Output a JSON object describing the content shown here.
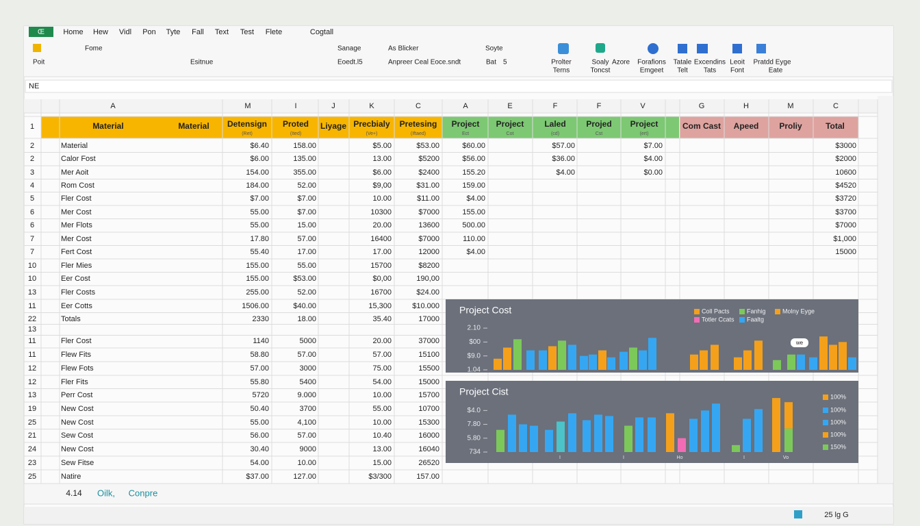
{
  "app_button": "Œ",
  "ribbon_tabs": [
    "Home",
    "Hew",
    "Vidl",
    "Pon",
    "Tyte",
    "Fall",
    "Text",
    "Test",
    "Flete",
    "Cogtall"
  ],
  "ribbon_items": [
    "Fome",
    "Sanage",
    "As Blicker",
    "Soyte",
    "Poit",
    "Esitnue",
    "Eoedt.l5",
    "Anpreer Ceal Eoce.sndt",
    "Bat",
    "5",
    "Prolter",
    "Terns",
    "Soaly",
    "Toncst",
    "Azore",
    "Forafions",
    "Emgeet",
    "Tatale",
    "Telt",
    "Excendins",
    "Tats",
    "Leoit",
    "Font",
    "Pratdd Eyge",
    "Eate"
  ],
  "name_box": "NE",
  "column_headers": [
    "A",
    "M",
    "I",
    "J",
    "K",
    "C",
    "A",
    "E",
    "F",
    "F",
    "V",
    "G",
    "H",
    "M",
    "C"
  ],
  "header_row": {
    "row": 1,
    "cells": [
      {
        "text": "Material"
      },
      {
        "text": "Material"
      },
      {
        "text": "Detensign",
        "sub": "(Ret)"
      },
      {
        "text": "Proted",
        "sub": "(Ited)"
      },
      {
        "text": "Liyage"
      },
      {
        "text": "Precbialy",
        "sub": "(Ve+)"
      },
      {
        "text": "Pretesing",
        "sub": "(Iftaed)"
      },
      {
        "text": "Project",
        "sub": "Ect"
      },
      {
        "text": "Project",
        "sub": "Cot"
      },
      {
        "text": "Laled",
        "sub": "(cd)"
      },
      {
        "text": "Projed",
        "sub": "Cst"
      },
      {
        "text": "Project",
        "sub": "(ert)"
      },
      {
        "text": "Com Cast"
      },
      {
        "text": "Apeed"
      },
      {
        "text": "Proliy"
      },
      {
        "text": "Total"
      }
    ]
  },
  "rows": [
    {
      "row": 2,
      "label": "Material",
      "m": "$6.40",
      "i": "158.00",
      "k": "$5.00",
      "c": "$53.00",
      "a": "$60.00",
      "f": "$57.00",
      "v": "$7.00",
      "total": "$3000"
    },
    {
      "row": 2,
      "label": "Calor Fost",
      "m": "$6.00",
      "i": "135.00",
      "k": "13.00",
      "c": "$5200",
      "a": "$56.00",
      "f": "$36.00",
      "v": "$4.00",
      "total": "$2000"
    },
    {
      "row": 3,
      "label": "Mer Aoit",
      "m": "154.00",
      "i": "355.00",
      "k": "$6.00",
      "c": "$2400",
      "a": "155.20",
      "f": "$4.00",
      "v": "$0.00",
      "total": "10600"
    },
    {
      "row": 4,
      "label": "Rom Cost",
      "m": "184.00",
      "i": "52.00",
      "k": "$9,00",
      "c": "$31.00",
      "a": "159.00",
      "total": "$4520"
    },
    {
      "row": 5,
      "label": "Fler Cost",
      "m": "$7.00",
      "i": "$7.00",
      "k": "10.00",
      "c": "$11.00",
      "a": "$4.00",
      "total": "$3720"
    },
    {
      "row": 6,
      "label": "Mer Cost",
      "m": "55.00",
      "i": "$7.00",
      "k": "10300",
      "c": "$7000",
      "a": "155.00",
      "total": "$3700"
    },
    {
      "row": 6,
      "label": "Mer Flots",
      "m": "55.00",
      "i": "15.00",
      "k": "20.00",
      "c": "13600",
      "a": "500.00",
      "total": "$7000"
    },
    {
      "row": 7,
      "label": "Mer Cost",
      "m": "17.80",
      "i": "57.00",
      "k": "16400",
      "c": "$7000",
      "a": "110.00",
      "total": "$1,000"
    },
    {
      "row": 7,
      "label": "Fert Cost",
      "m": "55.40",
      "i": "17.00",
      "k": "17.00",
      "c": "12000",
      "a": "$4.00",
      "total": "15000"
    },
    {
      "row": 10,
      "label": "Fler Mies",
      "m": "155.00",
      "i": "55.00",
      "k": "15700",
      "c": "$8200"
    },
    {
      "row": 10,
      "label": "Eer Cost",
      "m": "155.00",
      "i": "$53.00",
      "k": "$0,00",
      "c": "190,00"
    },
    {
      "row": 13,
      "label": "Fler Costs",
      "m": "255.00",
      "i": "52.00",
      "k": "16700",
      "c": "$24.00"
    },
    {
      "row": 11,
      "label": "Eer Cotts",
      "m": "1506.00",
      "i": "$40.00",
      "k": "15,300",
      "c": "$10.000"
    },
    {
      "row": 22,
      "label": "Totals",
      "m": "2330",
      "i": "18.00",
      "k": "35.40",
      "c": "17000"
    },
    {
      "row": 13
    },
    {
      "row": 11,
      "label": "Fler Cost",
      "m": "1140",
      "i": "5000",
      "k": "20.00",
      "c": "37000"
    },
    {
      "row": 11,
      "label": "Flew Fits",
      "m": "58.80",
      "i": "57.00",
      "k": "57.00",
      "c": "15100"
    },
    {
      "row": 12,
      "label": "Flew Fots",
      "m": "57.00",
      "i": "3000",
      "k": "75.00",
      "c": "15500"
    },
    {
      "row": 12,
      "label": "Fler Fits",
      "m": "55.80",
      "i": "5400",
      "k": "54.00",
      "c": "15000"
    },
    {
      "row": 13,
      "label": "Perr Cost",
      "m": "5720",
      "i": "9.000",
      "k": "10.00",
      "c": "15700"
    },
    {
      "row": 19,
      "label": "New Cost",
      "m": "50.40",
      "i": "3700",
      "k": "55.00",
      "c": "10700"
    },
    {
      "row": 25,
      "label": "New Cost",
      "m": "55.00",
      "i": "4,100",
      "k": "10.00",
      "c": "15300"
    },
    {
      "row": 21,
      "label": "Sew Cost",
      "m": "56.00",
      "i": "57.00",
      "k": "10.40",
      "c": "16000"
    },
    {
      "row": 24,
      "label": "New Cost",
      "m": "30.40",
      "i": "9000",
      "k": "13.00",
      "c": "16040"
    },
    {
      "row": 23,
      "label": "Sew Fitse",
      "m": "54.00",
      "i": "10.00",
      "k": "15.00",
      "c": "26520"
    },
    {
      "row": 25,
      "label": "Natire",
      "m": "$37.00",
      "i": "127.00",
      "k": "$3/300",
      "c": "157.00"
    }
  ],
  "charts": [
    {
      "type": "bar",
      "title": "Project Cost",
      "ylim": [
        0,
        3.2
      ],
      "yticks": [
        {
          "value": 3,
          "label": "2.10"
        },
        {
          "value": 2,
          "label": "$00"
        },
        {
          "value": 1,
          "label": "$9.0"
        },
        {
          "value": 0,
          "label": "1.04"
        }
      ],
      "legend": [
        {
          "name": "Coll Pacts",
          "color": "#f5a01a"
        },
        {
          "name": "Fanhig",
          "color": "#7cc95a"
        },
        {
          "name": "Molny Eyge",
          "color": "#f5a01a"
        },
        {
          "name": "Totler Ccats",
          "color": "#f26cb5"
        },
        {
          "name": "Faaltg",
          "color": "#35a7f2"
        }
      ],
      "annotation": "we",
      "bars": [
        {
          "value": 0.8,
          "color": "#f5a01a"
        },
        {
          "value": 1.6,
          "color": "#f5a01a"
        },
        {
          "value": 2.2,
          "color": "#7cc95a"
        },
        {
          "value": 1.4,
          "color": "#35a7f2"
        },
        {
          "value": 1.4,
          "color": "#35a7f2"
        },
        {
          "value": 1.7,
          "color": "#f5a01a"
        },
        {
          "value": 2.1,
          "color": "#7cc95a"
        },
        {
          "value": 1.8,
          "color": "#35a7f2"
        },
        {
          "value": 1.0,
          "color": "#35a7f2"
        },
        {
          "value": 1.1,
          "color": "#35a7f2"
        },
        {
          "value": 1.4,
          "color": "#f5a01a"
        },
        {
          "value": 0.9,
          "color": "#35a7f2"
        },
        {
          "value": 1.3,
          "color": "#35a7f2"
        },
        {
          "value": 1.6,
          "color": "#7cc95a"
        },
        {
          "value": 1.4,
          "color": "#35a7f2"
        },
        {
          "value": 2.3,
          "color": "#35a7f2"
        },
        {
          "value": 1.1,
          "color": "#f5a01a"
        },
        {
          "value": 1.4,
          "color": "#f5a01a"
        },
        {
          "value": 1.8,
          "color": "#f5a01a"
        },
        {
          "value": 0.9,
          "color": "#f5a01a"
        },
        {
          "value": 1.4,
          "color": "#f5a01a"
        },
        {
          "value": 2.1,
          "color": "#f5a01a"
        },
        {
          "value": 0.7,
          "color": "#7cc95a"
        },
        {
          "value": 1.1,
          "color": "#7cc95a"
        },
        {
          "value": 1.1,
          "color": "#35a7f2"
        },
        {
          "value": 0.9,
          "color": "#35a7f2"
        },
        {
          "value": 2.4,
          "color": "#f5a01a"
        },
        {
          "value": 1.8,
          "color": "#f5a01a"
        },
        {
          "value": 2.0,
          "color": "#f5a01a"
        },
        {
          "value": 0.9,
          "color": "#35a7f2"
        }
      ]
    },
    {
      "type": "bar",
      "title": "Project Cist",
      "ylim": [
        0,
        4.5
      ],
      "yticks": [
        {
          "value": 3,
          "label": "$4.0"
        },
        {
          "value": 2,
          "label": "7.80"
        },
        {
          "value": 1,
          "label": "5.80"
        },
        {
          "value": 0,
          "label": "734"
        }
      ],
      "legend": [
        {
          "name": "100%",
          "color": "#f5a01a"
        },
        {
          "name": "100%",
          "color": "#35a7f2"
        },
        {
          "name": "100%",
          "color": "#35a7f2"
        },
        {
          "name": "100%",
          "color": "#f5a01a"
        },
        {
          "name": "150%",
          "color": "#7cc95a"
        }
      ],
      "x_labels": [
        "I",
        "I",
        "Ho",
        "I",
        "Vo"
      ],
      "bars": [
        {
          "value": 1.6,
          "color": "#7cc95a"
        },
        {
          "value": 2.7,
          "color": "#35a7f2"
        },
        {
          "value": 2.0,
          "color": "#35a7f2"
        },
        {
          "value": 1.9,
          "color": "#35a7f2"
        },
        {
          "value": 1.6,
          "color": "#35a7f2"
        },
        {
          "value": 2.2,
          "color": "#4cc3c9"
        },
        {
          "value": 2.8,
          "color": "#35a7f2"
        },
        {
          "value": 2.3,
          "color": "#35a7f2"
        },
        {
          "value": 2.7,
          "color": "#35a7f2"
        },
        {
          "value": 2.6,
          "color": "#35a7f2"
        },
        {
          "value": 1.9,
          "color": "#7cc95a"
        },
        {
          "value": 2.5,
          "color": "#35a7f2"
        },
        {
          "value": 2.5,
          "color": "#35a7f2"
        },
        {
          "value": 2.8,
          "color": "#f5a01a"
        },
        {
          "value": 1.0,
          "color": "#f26cb5"
        },
        {
          "value": 2.4,
          "color": "#35a7f2"
        },
        {
          "value": 3.0,
          "color": "#35a7f2"
        },
        {
          "value": 3.5,
          "color": "#35a7f2"
        },
        {
          "value": 0.5,
          "color": "#7cc95a"
        },
        {
          "value": 2.4,
          "color": "#35a7f2"
        },
        {
          "value": 3.1,
          "color": "#35a7f2"
        },
        {
          "value": 3.9,
          "color": "#f5a01a"
        },
        {
          "value": 1.7,
          "color": "#7cc95a",
          "stack": {
            "value": 1.9,
            "color": "#f5a01a"
          }
        }
      ]
    }
  ],
  "sheet_tabs": [
    "4.14",
    "Oilk,",
    "Conpre"
  ],
  "status": "25 lg G"
}
